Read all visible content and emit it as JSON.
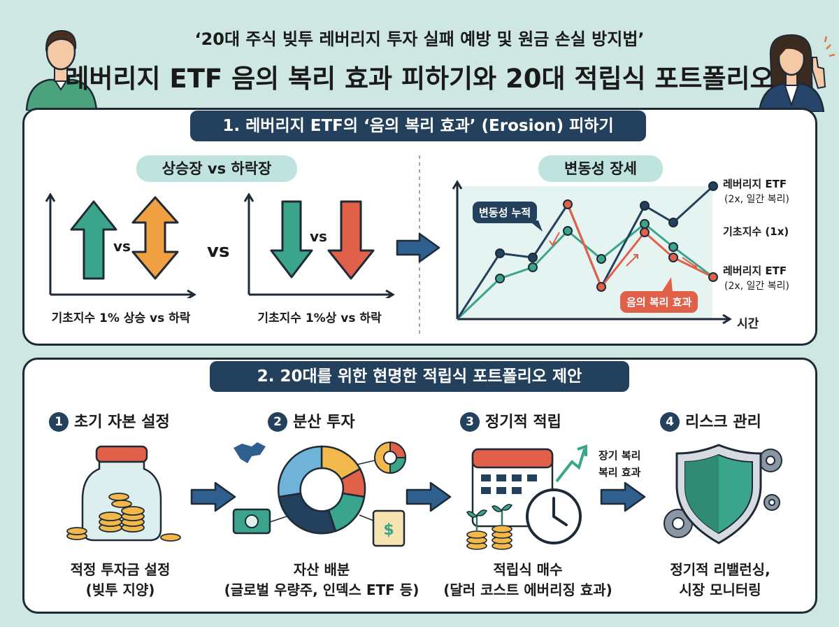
{
  "header": {
    "subtitle": "‘20대 주식 빚투 레버리지 투자 실패 예방 및 원금 손실 방지법’",
    "title": "레버리지 ETF 음의 복리 효과 피하기와 20대 적립식 포트폴리오"
  },
  "section1": {
    "title": "1. 레버리지 ETF의 ‘음의 복리 효과’ (Erosion) 피하기",
    "left_heading": "상승장 vs 하락장",
    "up_vs": "vs",
    "middle_vs": "vs",
    "down_vs": "vs",
    "caption_up": "기초지수 1% 상승 vs 하락",
    "caption_down": "기초지수 1%상 vs 하락",
    "right_heading": "변동성 장세",
    "volatility_bubble": "변동성 누적",
    "erosion_bubble": "음의 복리 효과",
    "x_axis_label": "시간",
    "legend_top_line1": "레버리지 ETF",
    "legend_top_line2": "(2x, 일간 복리)",
    "legend_mid": "기초지수 (1x)",
    "legend_bot_line1": "레버리지 ETF",
    "legend_bot_line2": "(2x, 일간 복리)",
    "colors": {
      "navy": "#23405c",
      "teal": "#3aa58a",
      "orange": "#f0a040",
      "red": "#e0604a"
    }
  },
  "section2": {
    "title": "2. 20대를 위한 현명한 적립식 포트폴리오 제안",
    "steps": [
      {
        "num": "1",
        "title": "초기 자본 설정",
        "desc1": "적정 투자금 설정",
        "desc2": "(빚투 지양)",
        "icon": "coin-jar-icon"
      },
      {
        "num": "2",
        "title": "분산 투자",
        "desc1": "자산 배분",
        "desc2": "(글로벌 우량주, 인덱스 ETF 등)",
        "icon": "donut-allocation-icon"
      },
      {
        "num": "3",
        "title": "정기적 적립",
        "desc1": "적립식 매수",
        "desc2": "(달러 코스트 에버리징 효과)",
        "icon": "calendar-clock-icon"
      },
      {
        "num": "4",
        "title": "리스크 관리",
        "desc1": "정기적 리밸런싱,",
        "desc2": "시장 모니터링",
        "icon": "shield-gears-icon"
      }
    ],
    "growth_label_line1": "장기 복리",
    "growth_label_line2": "복리 효과"
  }
}
